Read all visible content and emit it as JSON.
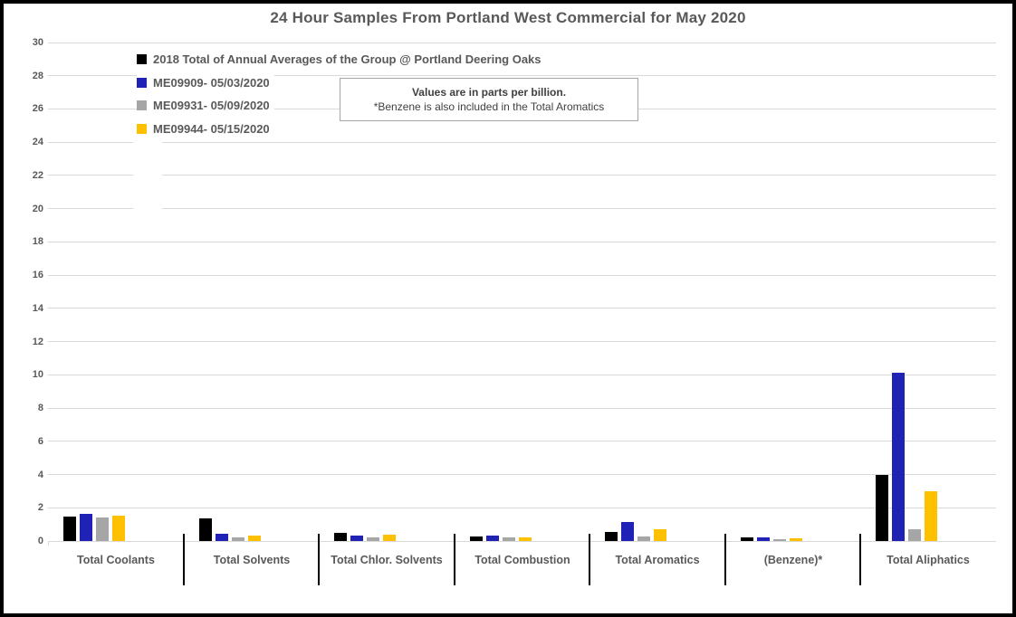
{
  "title": "24 Hour Samples From Portland West Commercial for May 2020",
  "note": {
    "line1": "Values are in parts per billion.",
    "line2": "*Benzene is also included in the Total Aromatics"
  },
  "chart_data": {
    "type": "bar",
    "title": "24 Hour Samples From Portland West Commercial for May 2020",
    "categories": [
      "Total Coolants",
      "Total Solvents",
      "Total Chlor. Solvents",
      "Total Combustion",
      "Total Aromatics",
      "(Benzene)*",
      "Total Aliphatics"
    ],
    "series": [
      {
        "name": "2018 Total of Annual Averages of the Group @ Portland Deering Oaks",
        "color": "#000000",
        "values": [
          1.45,
          1.35,
          0.5,
          0.25,
          0.55,
          0.2,
          4.0
        ]
      },
      {
        "name": "ME09909- 05/03/2020",
        "color": "#1F22B4",
        "values": [
          1.65,
          0.45,
          0.3,
          0.3,
          1.15,
          0.2,
          10.1
        ]
      },
      {
        "name": "ME09931- 05/09/2020",
        "color": "#A6A6A6",
        "values": [
          1.4,
          0.2,
          0.2,
          0.2,
          0.25,
          0.1,
          0.7
        ]
      },
      {
        "name": "ME09944- 05/15/2020",
        "color": "#FFC000",
        "values": [
          1.55,
          0.3,
          0.4,
          0.2,
          0.7,
          0.15,
          3.0
        ]
      }
    ],
    "xlabel": "",
    "ylabel": "",
    "ylim": [
      0,
      30
    ],
    "ytick_step": 2,
    "grid": true,
    "legend_position": "top-left",
    "units": "parts per billion"
  },
  "colors": {
    "axis_text": "#595959",
    "gridline": "#D9D9D9",
    "category_separator": "#000000",
    "outer_frame": "#000000",
    "note_border": "#A6A6A6"
  }
}
